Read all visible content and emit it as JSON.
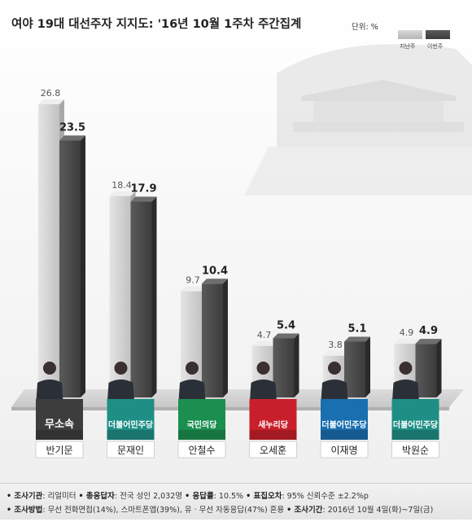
{
  "title": "여야 19대 대선주자 지지도: '16년 10월 1주차 주간집계",
  "unit": "단위: %",
  "chart_data": {
    "type": "bar",
    "title": "여야 19대 대선주자 지지도: '16년 10월 1주차 주간집계",
    "ylabel": "",
    "xlabel": "",
    "ylim": [
      0,
      30
    ],
    "grid": false,
    "legend": "top-right",
    "categories": [
      "반기문",
      "문재인",
      "안철수",
      "오세훈",
      "이재명",
      "박원순"
    ],
    "series": [
      {
        "name": "지난주",
        "values": [
          26.8,
          18.4,
          9.7,
          4.7,
          3.8,
          4.9
        ]
      },
      {
        "name": "이번주",
        "values": [
          23.5,
          17.9,
          10.4,
          5.4,
          5.1,
          4.9
        ]
      }
    ],
    "parties": [
      "무소속",
      "더불어민주당",
      "국민의당",
      "새누리당",
      "더불어민주당",
      "더불어민주당"
    ],
    "party_colors": [
      "#3d3d3d",
      "#1f8f86",
      "#1b8f50",
      "#c8202b",
      "#1a6fb0",
      "#1f8f86"
    ]
  },
  "colors": {
    "previous_bar": "#c4c4c4",
    "current_bar": "#474747"
  },
  "footer": {
    "line1_parts": [
      {
        "label": "조사기관",
        "text": ": 리얼미터 "
      },
      {
        "label": "총응답자",
        "text": ": 전국 성인 2,032명 "
      },
      {
        "label": "응답률",
        "text": ": 10.5% "
      },
      {
        "label": "표집오차",
        "text": ": 95% 신뢰수준 ±2.2%p"
      }
    ],
    "line2_parts": [
      {
        "label": "조사방법",
        "text": ": 무선 전화면접(14%), 스마트폰앱(39%), 유 · 무선 자동응답(47%) 혼용 "
      },
      {
        "label": "조사기간",
        "text": ": 2016년 10월 4일(화)~7일(금)"
      }
    ]
  }
}
